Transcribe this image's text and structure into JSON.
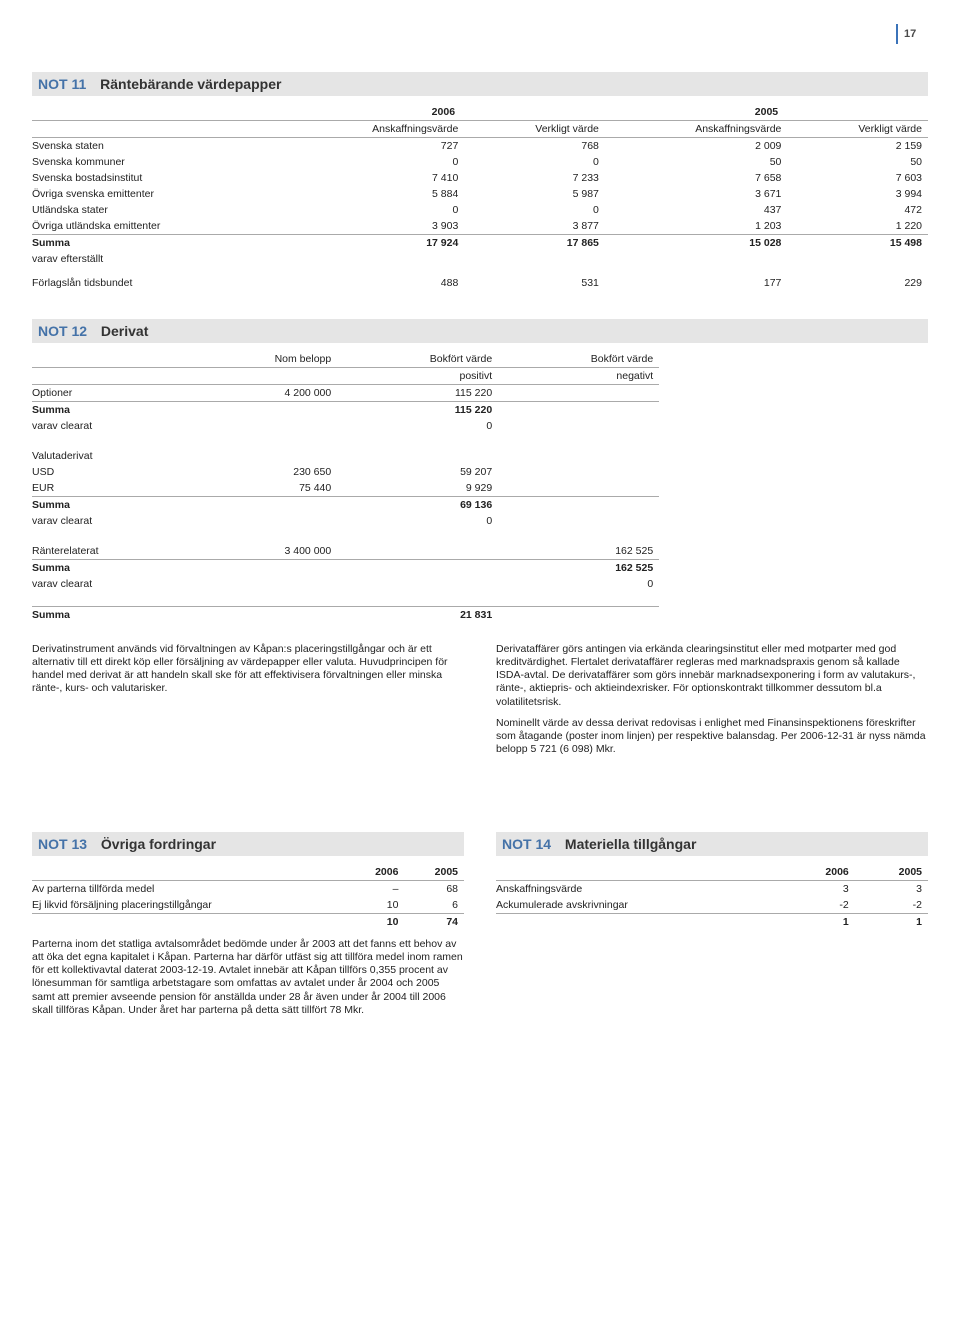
{
  "page_number": "17",
  "not11": {
    "id": "NOT 11",
    "title": "Räntebärande värdepapper",
    "year_groups": [
      "2006",
      "2005"
    ],
    "columns": [
      "Anskaffningsvärde",
      "Verkligt värde",
      "Anskaffningsvärde",
      "Verkligt värde"
    ],
    "rows": [
      {
        "label": "Svenska staten",
        "v": [
          "727",
          "768",
          "2 009",
          "2 159"
        ]
      },
      {
        "label": "Svenska kommuner",
        "v": [
          "0",
          "0",
          "50",
          "50"
        ]
      },
      {
        "label": "Svenska bostadsinstitut",
        "v": [
          "7 410",
          "7 233",
          "7 658",
          "7 603"
        ]
      },
      {
        "label": "Övriga svenska emittenter",
        "v": [
          "5 884",
          "5 987",
          "3 671",
          "3 994"
        ]
      },
      {
        "label": "Utländska stater",
        "v": [
          "0",
          "0",
          "437",
          "472"
        ]
      },
      {
        "label": "Övriga utländska emittenter",
        "v": [
          "3 903",
          "3 877",
          "1 203",
          "1 220"
        ]
      }
    ],
    "summa": {
      "label": "Summa",
      "v": [
        "17 924",
        "17 865",
        "15 028",
        "15 498"
      ]
    },
    "varav": {
      "label": "varav efterställt"
    },
    "forlag": {
      "label": "Förlagslån tidsbundet",
      "v": [
        "488",
        "531",
        "177",
        "229"
      ]
    }
  },
  "not12": {
    "id": "NOT 12",
    "title": "Derivat",
    "columns": [
      "Nom belopp",
      "Bokfört värde positivt",
      "Bokfört värde negativt"
    ],
    "col_sub": [
      "",
      "positivt",
      "negativt"
    ],
    "col_top": [
      "Nom belopp",
      "Bokfört värde",
      "Bokfört värde"
    ],
    "sections": {
      "optioner": {
        "label": "Optioner",
        "v": [
          "4 200 000",
          "115 220",
          ""
        ]
      },
      "summa1": {
        "label": "Summa",
        "v": [
          "",
          "115 220",
          ""
        ]
      },
      "varav1": {
        "label": "varav clearat",
        "v": [
          "",
          "0",
          ""
        ]
      },
      "valuta_header": "Valutaderivat",
      "usd": {
        "label": "USD",
        "v": [
          "230 650",
          "59 207",
          ""
        ]
      },
      "eur": {
        "label": "EUR",
        "v": [
          "75 440",
          "9 929",
          ""
        ]
      },
      "summa2": {
        "label": "Summa",
        "v": [
          "",
          "69 136",
          ""
        ]
      },
      "varav2": {
        "label": "varav clearat",
        "v": [
          "",
          "0",
          ""
        ]
      },
      "rante": {
        "label": "Ränterelaterat",
        "v": [
          "3 400 000",
          "",
          "162 525"
        ]
      },
      "summa3": {
        "label": "Summa",
        "v": [
          "",
          "",
          "162 525"
        ]
      },
      "varav3": {
        "label": "varav clearat",
        "v": [
          "",
          "",
          "0"
        ]
      },
      "summa_total": {
        "label": "Summa",
        "v": [
          "",
          "21 831",
          ""
        ]
      }
    },
    "text_left": "Derivatinstrument används vid förvaltningen av Kåpan:s placeringstillgångar och är ett alternativ till ett direkt köp eller försäljning av värdepapper eller valuta. Huvudprincipen för handel med derivat är att handeln skall ske för att effektivisera förvaltningen eller minska ränte-, kurs- och valutarisker.",
    "text_right1": "Derivataffärer görs antingen via erkända clearingsinstitut eller med motparter med god kreditvärdighet. Flertalet derivataffärer regleras med marknadspraxis genom så kallade ISDA-avtal. De derivataffärer som görs innebär marknadsexponering i form av valutakurs-, ränte-, aktiepris- och aktieindexrisker. För optionskontrakt tillkommer dessutom bl.a volatilitetsrisk.",
    "text_right2": "Nominellt värde av dessa derivat redovisas i enlighet med Finansinspektionens föreskrifter som åtagande (poster inom linjen) per respektive balansdag. Per 2006-12-31 är nyss nämda belopp 5 721 (6 098) Mkr."
  },
  "not13": {
    "id": "NOT 13",
    "title": "Övriga fordringar",
    "columns": [
      "2006",
      "2005"
    ],
    "rows": [
      {
        "label": "Av parterna tillförda medel",
        "v": [
          "–",
          "68"
        ]
      },
      {
        "label": "Ej likvid försäljning placeringstillgångar",
        "v": [
          "10",
          "6"
        ]
      }
    ],
    "total": [
      "10",
      "74"
    ],
    "text": "Parterna inom det statliga avtalsområdet bedömde under år 2003 att det fanns ett behov av att öka det egna kapitalet i Kåpan. Parterna har därför utfäst sig att tillföra medel inom ramen för ett kollektivavtal daterat 2003-12-19. Avtalet innebär att Kåpan tillförs 0,355 procent av lönesumman för samtliga arbetstagare som omfattas av avtalet under år 2004 och 2005 samt att premier avseende pension för anställda under 28 år även under år 2004 till 2006 skall tillföras Kåpan. Under året har parterna på detta sätt tillfört 78 Mkr."
  },
  "not14": {
    "id": "NOT 14",
    "title": "Materiella tillgångar",
    "columns": [
      "2006",
      "2005"
    ],
    "rows": [
      {
        "label": "Anskaffningsvärde",
        "v": [
          "3",
          "3"
        ]
      },
      {
        "label": "Ackumulerade avskrivningar",
        "v": [
          "-2",
          "-2"
        ]
      }
    ],
    "total": [
      "1",
      "1"
    ]
  }
}
